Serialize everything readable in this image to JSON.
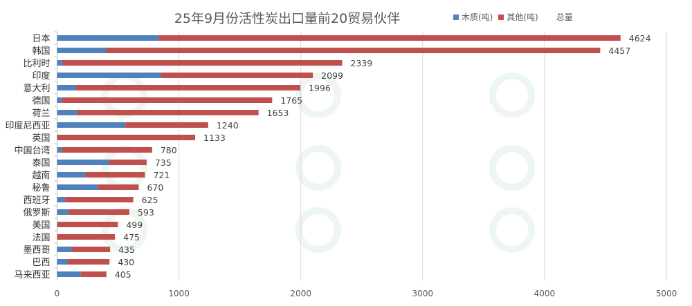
{
  "chart_data": {
    "type": "bar",
    "orientation": "horizontal",
    "stacked": true,
    "title": "25年9月份活性炭出口量前20贸易伙伴",
    "categories": [
      "日本",
      "韩国",
      "比利时",
      "印度",
      "意大利",
      "德国",
      "荷兰",
      "印度尼西亚",
      "英国",
      "中国台湾",
      "泰国",
      "越南",
      "秘鲁",
      "西班牙",
      "俄罗斯",
      "美国",
      "法国",
      "墨西哥",
      "巴西",
      "马来西亚"
    ],
    "series": [
      {
        "name": "木质(吨)",
        "color": "#4f81bd",
        "values": [
          830,
          403,
          42,
          852,
          156,
          38,
          161,
          560,
          0,
          38,
          429,
          232,
          336,
          66,
          93,
          3,
          0,
          120,
          85,
          194
        ]
      },
      {
        "name": "其他(吨)",
        "color": "#c0504d",
        "values": [
          3794,
          4054,
          2297,
          1247,
          1840,
          1727,
          1492,
          680,
          1133,
          742,
          306,
          489,
          334,
          559,
          500,
          496,
          475,
          315,
          345,
          211
        ]
      }
    ],
    "totals_name": "总量",
    "totals": [
      4624,
      4457,
      2339,
      2099,
      1996,
      1765,
      1653,
      1240,
      1133,
      780,
      735,
      721,
      670,
      625,
      593,
      499,
      475,
      435,
      430,
      405
    ],
    "xlim": [
      0,
      5000
    ],
    "xticks": [
      0,
      1000,
      2000,
      3000,
      4000,
      5000
    ],
    "grid": true,
    "legend": "top-right"
  },
  "watermark": {
    "text": "易炭网",
    "url": "easycarbon.cn"
  }
}
